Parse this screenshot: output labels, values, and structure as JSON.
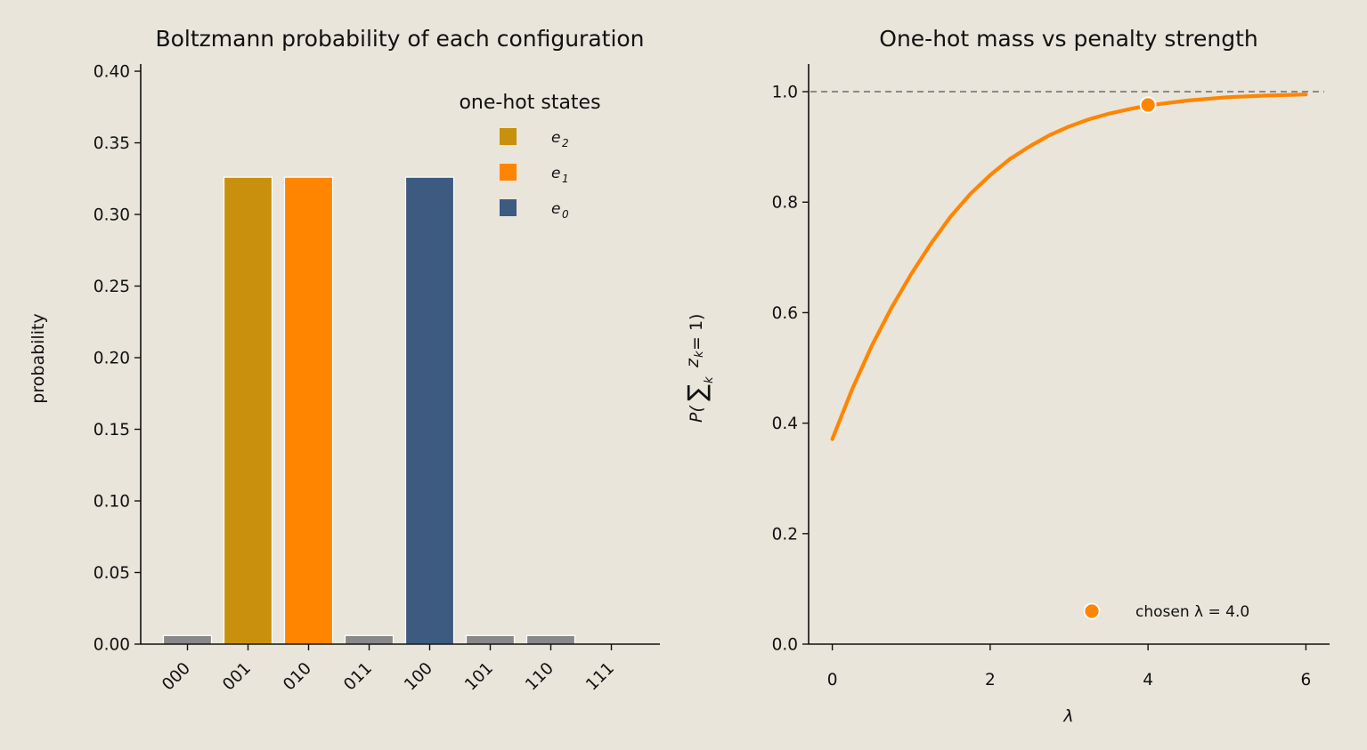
{
  "chart_data": [
    {
      "type": "bar",
      "title": "Boltzmann probability of each configuration",
      "xlabel": "",
      "ylabel": "probability",
      "categories": [
        "000",
        "001",
        "010",
        "011",
        "100",
        "101",
        "110",
        "111"
      ],
      "values": [
        0.006,
        0.326,
        0.326,
        0.006,
        0.326,
        0.006,
        0.006,
        0.0
      ],
      "bar_colors": [
        "#888888",
        "#c8900c",
        "#ff8500",
        "#888888",
        "#3d5a80",
        "#888888",
        "#888888",
        "#888888"
      ],
      "ylim": [
        0,
        0.405
      ],
      "yticks": [
        "0.00",
        "0.05",
        "0.10",
        "0.15",
        "0.20",
        "0.25",
        "0.30",
        "0.35",
        "0.40"
      ],
      "legend": {
        "title": "one-hot states",
        "placement": "top-right",
        "entries": [
          {
            "base": "e",
            "sub": "2",
            "color": "#c8900c"
          },
          {
            "base": "e",
            "sub": "1",
            "color": "#ff8500"
          },
          {
            "base": "e",
            "sub": "0",
            "color": "#3d5a80"
          }
        ]
      },
      "grid": false
    },
    {
      "type": "line",
      "title": "One-hot mass vs penalty strength",
      "xlabel": "λ",
      "ylabel": "P(∑zₖ = 1)",
      "ylabel_parts": {
        "prefix": "P(",
        "sum": "∑",
        "var": "z",
        "sub": "k",
        "suffix": " = 1)",
        "under": "k"
      },
      "series": [
        {
          "color": "#ff8500",
          "x": [
            0,
            0.25,
            0.5,
            0.75,
            1.0,
            1.25,
            1.5,
            1.75,
            2.0,
            2.25,
            2.5,
            2.75,
            3.0,
            3.25,
            3.5,
            3.75,
            4.0,
            4.5,
            5.0,
            5.5,
            6.0
          ],
          "y": [
            0.371,
            0.461,
            0.54,
            0.609,
            0.67,
            0.725,
            0.774,
            0.815,
            0.849,
            0.878,
            0.901,
            0.921,
            0.937,
            0.95,
            0.96,
            0.968,
            0.975,
            0.984,
            0.99,
            0.993,
            0.995
          ]
        }
      ],
      "reference_line": {
        "y": 1.0,
        "style": "dashed",
        "color": "#8a8a8a"
      },
      "highlight": {
        "x": 4.0,
        "y": 0.976,
        "label": "chosen λ = 4.0",
        "color": "#ff8500"
      },
      "legend": {
        "placement": "bottom-right"
      },
      "xlim": [
        -0.3,
        6.3
      ],
      "ylim": [
        0,
        1.05
      ],
      "xticks": [
        "0",
        "2",
        "4",
        "6"
      ],
      "yticks": [
        "0.0",
        "0.2",
        "0.4",
        "0.6",
        "0.8",
        "1.0"
      ],
      "grid": false
    }
  ]
}
